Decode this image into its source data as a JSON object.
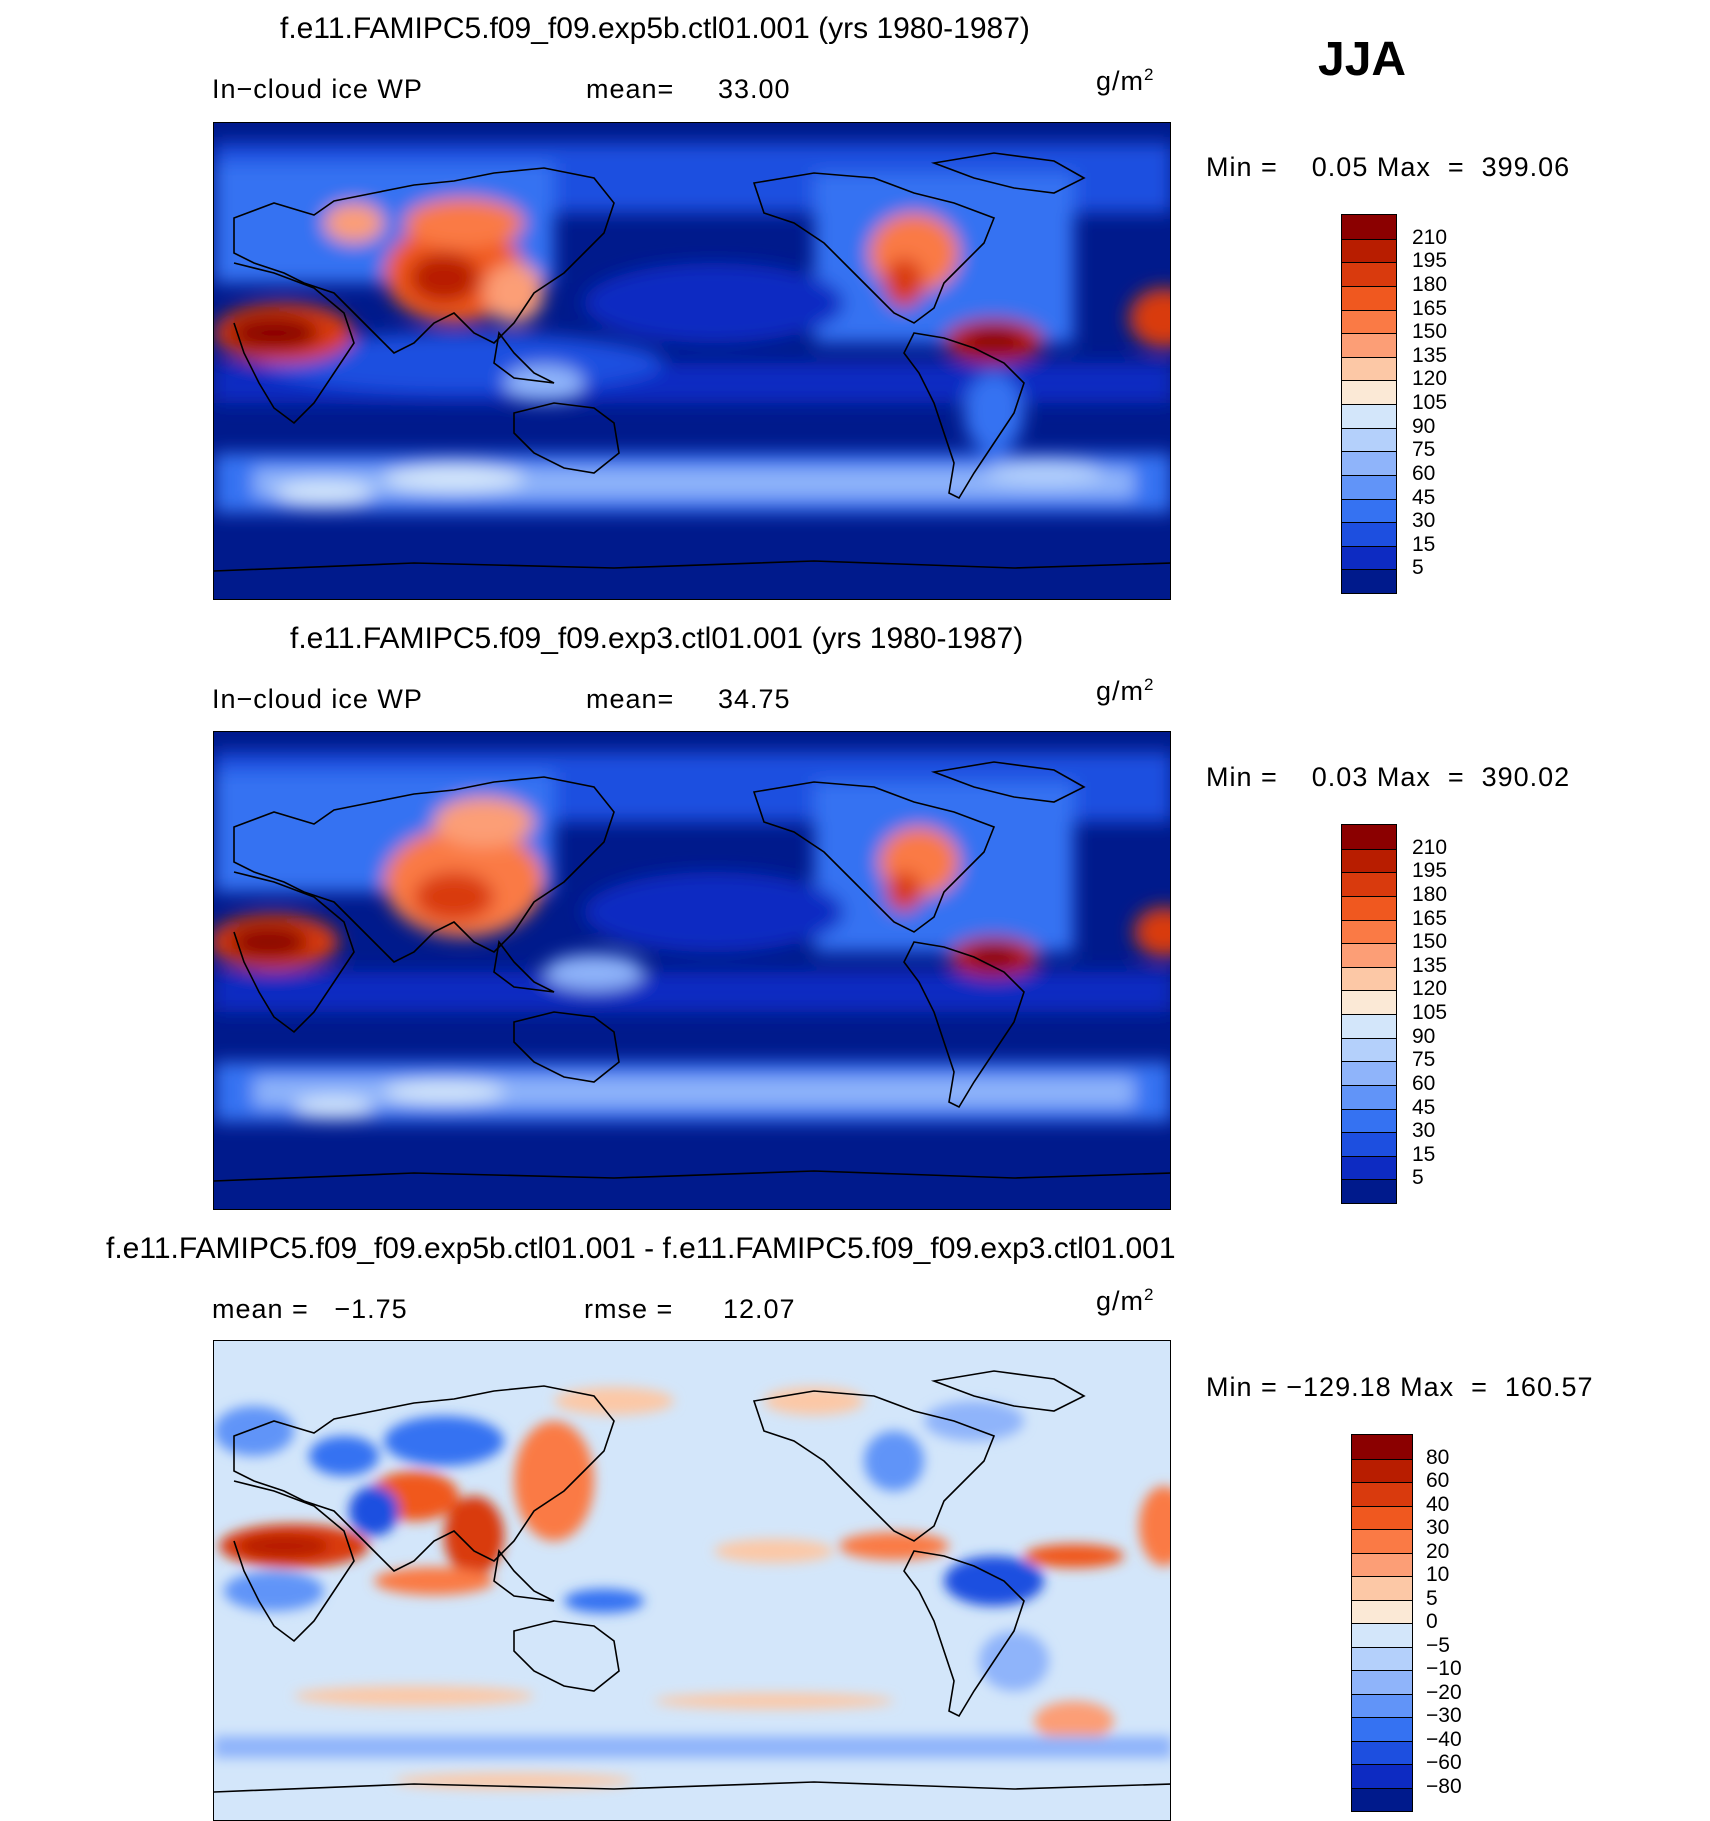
{
  "season": "JJA",
  "panels": [
    {
      "title": "f.e11.FAMIPC5.f09_f09.exp5b.ctl01.001 (yrs 1980-1987)",
      "left_text": "In−cloud ice WP",
      "mean_label": "mean=",
      "mean_value": "33.00",
      "units": "g/m",
      "units_exp": "2",
      "minmax": "Min =    0.05 Max  =  399.06",
      "colorbar_levels": [
        "210",
        "195",
        "180",
        "165",
        "150",
        "135",
        "120",
        "105",
        "90",
        "75",
        "60",
        "45",
        "30",
        "15",
        "5"
      ],
      "colorbar_colors": [
        "#8b0000",
        "#b81d00",
        "#d93a0d",
        "#f0581f",
        "#fa7a45",
        "#fc9e76",
        "#fcc8a6",
        "#fbe9d6",
        "#d3e6fa",
        "#b4d0fb",
        "#8fb4fa",
        "#6194f8",
        "#3572f2",
        "#1d4fe0",
        "#0d2bc2",
        "#001a8c"
      ]
    },
    {
      "title": "f.e11.FAMIPC5.f09_f09.exp3.ctl01.001 (yrs 1980-1987)",
      "left_text": "In−cloud ice WP",
      "mean_label": "mean=",
      "mean_value": "34.75",
      "units": "g/m",
      "units_exp": "2",
      "minmax": "Min =    0.03 Max  =  390.02",
      "colorbar_levels": [
        "210",
        "195",
        "180",
        "165",
        "150",
        "135",
        "120",
        "105",
        "90",
        "75",
        "60",
        "45",
        "30",
        "15",
        "5"
      ],
      "colorbar_colors": [
        "#8b0000",
        "#b81d00",
        "#d93a0d",
        "#f0581f",
        "#fa7a45",
        "#fc9e76",
        "#fcc8a6",
        "#fbe9d6",
        "#d3e6fa",
        "#b4d0fb",
        "#8fb4fa",
        "#6194f8",
        "#3572f2",
        "#1d4fe0",
        "#0d2bc2",
        "#001a8c"
      ]
    },
    {
      "title": "f.e11.FAMIPC5.f09_f09.exp5b.ctl01.001 - f.e11.FAMIPC5.f09_f09.exp3.ctl01.001",
      "left_text": "mean =   −1.75",
      "mean_label": "rmse =",
      "mean_value": "12.07",
      "units": "g/m",
      "units_exp": "2",
      "minmax": "Min = −129.18 Max  =  160.57",
      "colorbar_levels": [
        "80",
        "60",
        "40",
        "30",
        "20",
        "10",
        "5",
        "0",
        "−5",
        "−10",
        "−20",
        "−30",
        "−40",
        "−60",
        "−80"
      ],
      "colorbar_colors": [
        "#8b0000",
        "#b81d00",
        "#d93a0d",
        "#f0581f",
        "#fa7a45",
        "#fc9e76",
        "#fcc8a6",
        "#fbe9d6",
        "#d3e6fa",
        "#b4d0fb",
        "#8fb4fa",
        "#6194f8",
        "#3572f2",
        "#1d4fe0",
        "#0d2bc2",
        "#001a8c"
      ]
    }
  ]
}
